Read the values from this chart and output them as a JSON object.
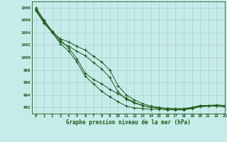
{
  "title": "Graphe pression niveau de la mer (hPa)",
  "xlim": [
    -0.5,
    23
  ],
  "ylim": [
    991.0,
    1009.0
  ],
  "yticks": [
    992,
    994,
    996,
    998,
    1000,
    1002,
    1004,
    1006,
    1008
  ],
  "xticks": [
    0,
    1,
    2,
    3,
    4,
    5,
    6,
    7,
    8,
    9,
    10,
    11,
    12,
    13,
    14,
    15,
    16,
    17,
    18,
    19,
    20,
    21,
    22,
    23
  ],
  "bg_color": "#c6ecea",
  "grid_color": "#b0c8c8",
  "line_color": "#1a5c1a",
  "series": [
    [
      1008.0,
      1006.0,
      1004.2,
      1002.8,
      1001.5,
      999.8,
      997.5,
      996.5,
      995.8,
      994.9,
      994.2,
      993.5,
      992.8,
      992.3,
      992.0,
      991.9,
      991.8,
      991.8,
      991.8,
      992.0,
      992.3,
      992.3,
      992.3,
      992.2
    ],
    [
      1007.8,
      1005.8,
      1004.0,
      1002.5,
      1001.8,
      1001.0,
      1000.3,
      999.2,
      998.2,
      996.8,
      994.5,
      993.3,
      992.7,
      992.3,
      992.0,
      991.9,
      991.8,
      991.7,
      991.7,
      991.9,
      992.2,
      992.2,
      992.3,
      992.2
    ],
    [
      1007.6,
      1005.6,
      1004.1,
      1003.0,
      1002.5,
      1001.8,
      1001.2,
      1000.2,
      999.3,
      998.0,
      995.5,
      994.0,
      993.2,
      992.6,
      992.2,
      992.0,
      991.8,
      991.7,
      991.7,
      991.9,
      992.2,
      992.3,
      992.4,
      992.3
    ],
    [
      1007.5,
      1005.5,
      1004.0,
      1002.2,
      1001.0,
      999.3,
      997.0,
      995.8,
      994.6,
      993.7,
      992.9,
      992.2,
      991.9,
      991.8,
      991.7,
      991.7,
      991.6,
      991.6,
      991.6,
      991.8,
      992.1,
      992.2,
      992.2,
      992.1
    ]
  ]
}
